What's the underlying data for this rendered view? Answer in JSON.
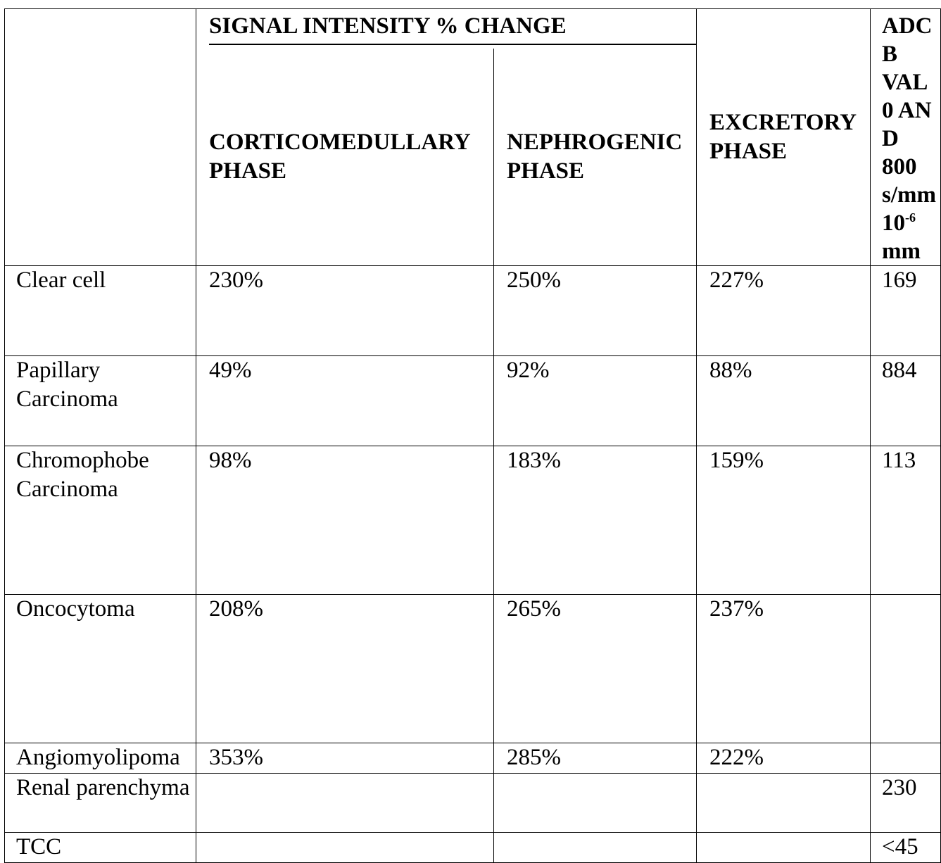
{
  "table": {
    "group_header": "SIGNAL INTENSITY % CHANGE",
    "columns": {
      "corticomedullary": "CORTICOMEDULLARY PHASE",
      "nephrogenic": "NEPHROGENIC PHASE",
      "excretory": "EXCRETORY PHASE",
      "adc_lines": [
        "ADC",
        "B",
        "VAL",
        "0 AND",
        "800",
        "s/mm",
        "10",
        "mm"
      ],
      "adc_superscript": "-6"
    },
    "rows": [
      {
        "tissue": "Clear cell",
        "cortico": "230%",
        "nephro": "250%",
        "excretory": "227%",
        "adc": "169"
      },
      {
        "tissue": "Papillary Carcinoma",
        "cortico": "49%",
        "nephro": "92%",
        "excretory": "88%",
        "adc": "884"
      },
      {
        "tissue": "Chromophobe Carcinoma",
        "cortico": "98%",
        "nephro": "183%",
        "excretory": "159%",
        "adc": "113"
      },
      {
        "tissue": "Oncocytoma",
        "cortico": "208%",
        "nephro": "265%",
        "excretory": "237%",
        "adc": ""
      },
      {
        "tissue": "Angiomyolipoma",
        "cortico": "353%",
        "nephro": "285%",
        "excretory": "222%",
        "adc": ""
      },
      {
        "tissue": "Renal parenchyma",
        "cortico": "",
        "nephro": "",
        "excretory": "",
        "adc": "230"
      },
      {
        "tissue": "TCC",
        "cortico": "",
        "nephro": "",
        "excretory": "",
        "adc": "<45"
      }
    ]
  }
}
